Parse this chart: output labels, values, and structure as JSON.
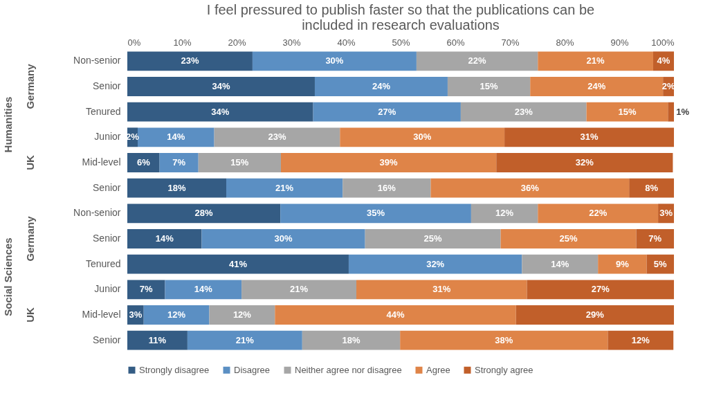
{
  "chart_data": {
    "type": "bar",
    "orientation": "horizontal",
    "stacked": true,
    "title": "I feel pressured to publish faster so that the publications can be included in research evaluations",
    "categories": [
      "Non-senior",
      "Senior",
      "Tenured",
      "Junior",
      "Mid-level",
      "Senior",
      "Non-senior",
      "Senior",
      "Tenured",
      "Junior",
      "Mid-level",
      "Senior"
    ],
    "annotations": [
      "Humanities",
      "Germany",
      "UK",
      "Social Sciences",
      "Germany",
      "UK"
    ],
    "xlim": [
      0,
      100
    ],
    "xticks": [
      {
        "value": 0,
        "label": "0%"
      },
      {
        "value": 10,
        "label": "10%"
      },
      {
        "value": 20,
        "label": "20%"
      },
      {
        "value": 30,
        "label": "30%"
      },
      {
        "value": 40,
        "label": "40%"
      },
      {
        "value": 50,
        "label": "50%"
      },
      {
        "value": 60,
        "label": "60%"
      },
      {
        "value": 70,
        "label": "70%"
      },
      {
        "value": 80,
        "label": "80%"
      },
      {
        "value": 90,
        "label": "90%"
      },
      {
        "value": 100,
        "label": "100%"
      }
    ],
    "legend": "bottom",
    "series": [
      {
        "name": "Strongly disagree",
        "color": "#345c84",
        "values": [
          22.9,
          34.3,
          34.0,
          1.9,
          5.9,
          18.1,
          28.0,
          13.6,
          40.5,
          6.9,
          3.0,
          11.0
        ],
        "value_labels": [
          "23%",
          "34%",
          "34%",
          "2%",
          "6%",
          "18%",
          "28%",
          "14%",
          "41%",
          "7%",
          "3%",
          "11%"
        ]
      },
      {
        "name": "Disagree",
        "color": "#5b8fc3",
        "values": [
          30.0,
          24.3,
          27.0,
          14.0,
          7.1,
          21.3,
          34.9,
          29.9,
          31.7,
          14.0,
          12.0,
          21.0
        ],
        "value_labels": [
          "30%",
          "24%",
          "27%",
          "14%",
          "7%",
          "21%",
          "35%",
          "30%",
          "32%",
          "14%",
          "12%",
          "21%"
        ]
      },
      {
        "name": "Neither agree nor disagree",
        "color": "#a6a6a6",
        "values": [
          22.2,
          15.1,
          23.0,
          23.0,
          15.1,
          16.1,
          12.2,
          24.8,
          13.9,
          21.0,
          12.0,
          17.9
        ],
        "value_labels": [
          "22%",
          "15%",
          "23%",
          "23%",
          "15%",
          "16%",
          "12%",
          "25%",
          "14%",
          "21%",
          "12%",
          "18%"
        ]
      },
      {
        "name": "Agree",
        "color": "#df8448",
        "values": [
          21.1,
          24.3,
          14.9,
          30.1,
          39.4,
          36.3,
          22.0,
          24.8,
          8.9,
          31.2,
          44.1,
          38.0
        ],
        "value_labels": [
          "21%",
          "24%",
          "15%",
          "30%",
          "39%",
          "36%",
          "22%",
          "25%",
          "9%",
          "31%",
          "44%",
          "38%"
        ]
      },
      {
        "name": "Strongly agree",
        "color": "#c15f2a",
        "values": [
          3.8,
          2.0,
          1.1,
          31.0,
          32.3,
          8.2,
          2.9,
          6.9,
          5.0,
          26.9,
          28.9,
          12.0
        ],
        "value_labels": [
          "4%",
          "2%",
          "1%",
          "31%",
          "32%",
          "8%",
          "3%",
          "7%",
          "5%",
          "27%",
          "29%",
          "12%"
        ]
      }
    ]
  }
}
